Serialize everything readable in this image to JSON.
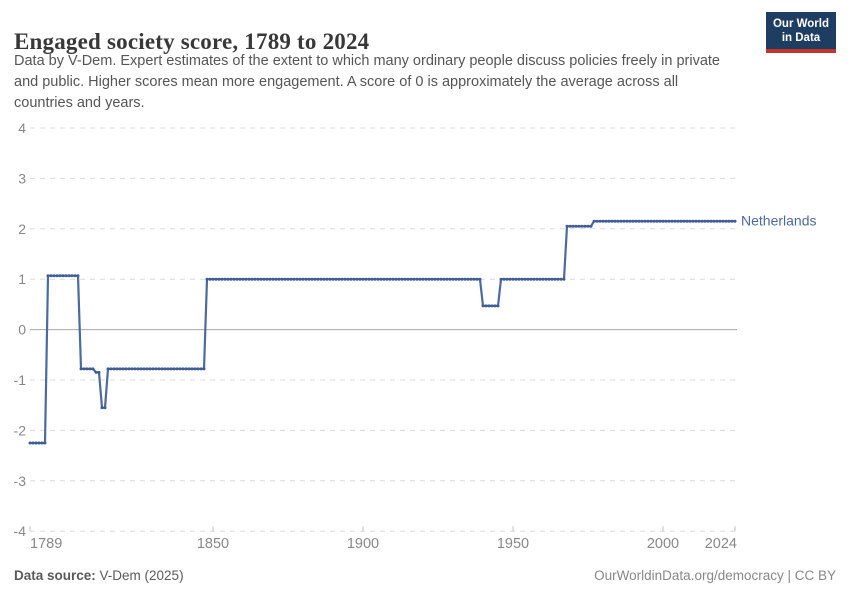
{
  "header": {
    "title": "Engaged society score, 1789 to 2024",
    "subtitle_lines": [
      "Data by V-Dem. Expert estimates of the extent to which many ordinary people discuss policies freely in private",
      "and public. Higher scores mean more engagement. A score of 0 is approximately the average across all",
      "countries and years."
    ],
    "logo": {
      "line1": "Our World",
      "line2": "in Data",
      "navy": "#1d3d63",
      "red": "#c4342b"
    }
  },
  "chart_data": {
    "type": "line",
    "title": "Engaged society score, 1789 to 2024",
    "x_range": [
      1789,
      2024
    ],
    "y_range": [
      -4,
      4
    ],
    "x_ticks": [
      1789,
      1850,
      1900,
      1950,
      2000,
      2024
    ],
    "y_ticks": [
      4,
      3,
      2,
      1,
      0,
      -1,
      -2,
      -3,
      -4
    ],
    "grid": "dashed-horizontal",
    "legend_position": "end-of-line",
    "series": [
      {
        "name": "Netherlands",
        "color": "#4d6a9e",
        "marker_color": "#3f5d95",
        "segments": [
          {
            "from": 1789,
            "to": 1794,
            "value": -2.25
          },
          {
            "from": 1795,
            "to": 1805,
            "value": 1.07
          },
          {
            "from": 1806,
            "to": 1810,
            "value": -0.78
          },
          {
            "from": 1811,
            "to": 1812,
            "value": -0.85
          },
          {
            "from": 1813,
            "to": 1814,
            "value": -1.55
          },
          {
            "from": 1815,
            "to": 1847,
            "value": -0.78
          },
          {
            "from": 1848,
            "to": 1939,
            "value": 1.0
          },
          {
            "from": 1940,
            "to": 1945,
            "value": 0.47
          },
          {
            "from": 1946,
            "to": 1967,
            "value": 1.0
          },
          {
            "from": 1968,
            "to": 1976,
            "value": 2.05
          },
          {
            "from": 1977,
            "to": 2024,
            "value": 2.15
          }
        ]
      }
    ],
    "colors": {
      "gridline": "#dcdcdc",
      "zero_line": "#a8a8a8",
      "tick_label": "#888888",
      "tick_mark": "#c0c0c0"
    }
  },
  "footer": {
    "source_label": "Data source:",
    "source_value": " V-Dem (2025)",
    "right_text": "OurWorldinData.org/democracy | CC BY"
  }
}
